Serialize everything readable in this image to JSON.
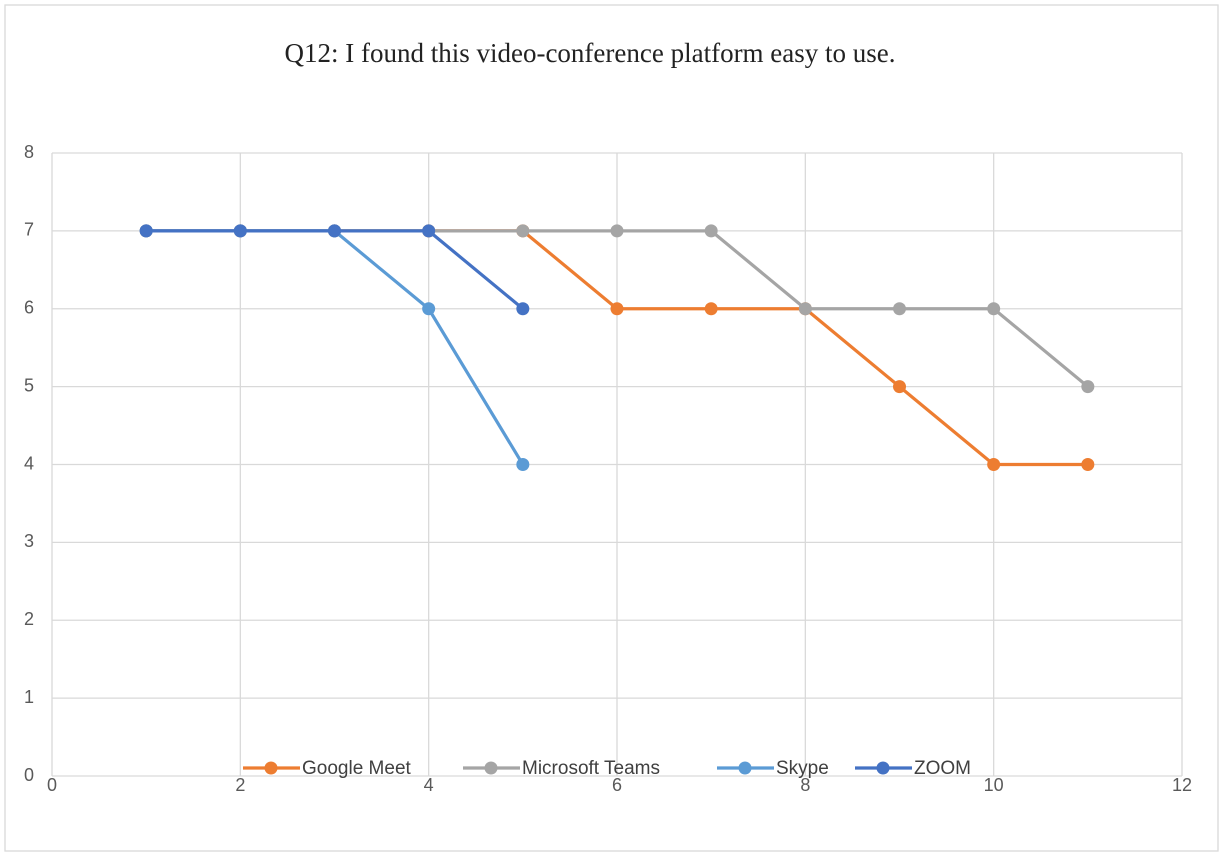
{
  "chart_data": {
    "type": "line",
    "title": "Q12: I found this video-conference platform easy to use.",
    "xlim": [
      0,
      12
    ],
    "xticks": [
      0,
      2,
      4,
      6,
      8,
      10,
      12
    ],
    "ylim": [
      0,
      8
    ],
    "yticks": [
      0,
      1,
      2,
      3,
      4,
      5,
      6,
      7,
      8
    ],
    "grid": true,
    "legend": "bottom",
    "series": [
      {
        "name": "Google Meet",
        "color": "#ed7d31",
        "x": [
          1,
          2,
          3,
          4,
          5,
          6,
          7,
          8,
          9,
          10,
          11
        ],
        "values": [
          7,
          7,
          7,
          7,
          7,
          6,
          6,
          6,
          5,
          4,
          4
        ]
      },
      {
        "name": "Microsoft Teams",
        "color": "#a5a5a5",
        "x": [
          1,
          2,
          3,
          4,
          5,
          6,
          7,
          8,
          9,
          10,
          11
        ],
        "values": [
          7,
          7,
          7,
          7,
          7,
          7,
          7,
          6,
          6,
          6,
          5
        ]
      },
      {
        "name": "Skype",
        "color": "#5b9bd5",
        "x": [
          1,
          2,
          3,
          4,
          5
        ],
        "values": [
          7,
          7,
          7,
          6,
          4
        ]
      },
      {
        "name": "ZOOM",
        "color": "#4472c4",
        "x": [
          1,
          2,
          3,
          4,
          5
        ],
        "values": [
          7,
          7,
          7,
          7,
          6
        ]
      }
    ]
  }
}
